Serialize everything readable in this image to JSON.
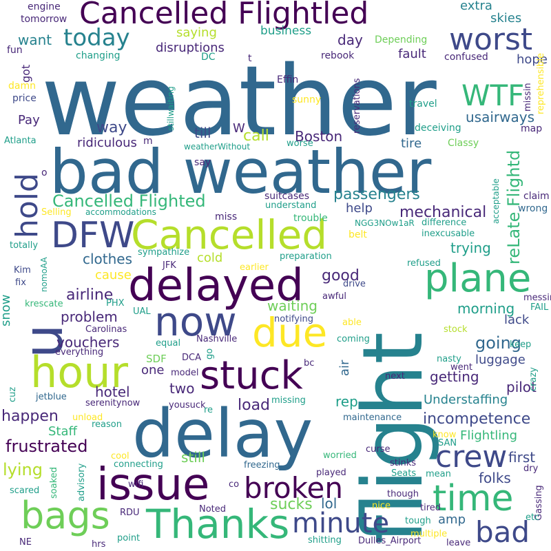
{
  "palette": {
    "c1": "#440154",
    "c2": "#482878",
    "c3": "#3e4989",
    "c4": "#31688e",
    "c5": "#26828e",
    "c6": "#1f9e89",
    "c7": "#35b779",
    "c8": "#6ece58",
    "c9": "#b5de2b",
    "c10": "#fde725"
  },
  "words": [
    {
      "text": "weather",
      "color": "c4"
    },
    {
      "text": "bad weather",
      "color": "c4"
    },
    {
      "text": "flight",
      "color": "c5"
    },
    {
      "text": "delay",
      "color": "c4"
    },
    {
      "text": "Cancelled Flightled",
      "color": "c1"
    },
    {
      "text": "delayed",
      "color": "c1"
    },
    {
      "text": "hour",
      "color": "c9"
    },
    {
      "text": "issue",
      "color": "c1"
    },
    {
      "text": "Cancelled",
      "color": "c9"
    },
    {
      "text": "u",
      "color": "c3"
    },
    {
      "text": "due",
      "color": "c10"
    },
    {
      "text": "stuck",
      "color": "c1"
    },
    {
      "text": "Thanks",
      "color": "c7"
    },
    {
      "text": "now",
      "color": "c3"
    },
    {
      "text": "plane",
      "color": "c7"
    },
    {
      "text": "bags",
      "color": "c8"
    },
    {
      "text": "time",
      "color": "c7"
    },
    {
      "text": "DFW",
      "color": "c3"
    },
    {
      "text": "broken",
      "color": "c1"
    },
    {
      "text": "crew",
      "color": "c3"
    },
    {
      "text": "hold",
      "color": "c3"
    },
    {
      "text": "minute",
      "color": "c3"
    },
    {
      "text": "bad",
      "color": "c3"
    },
    {
      "text": "worst",
      "color": "c3"
    },
    {
      "text": "today",
      "color": "c5"
    },
    {
      "text": "WTF",
      "color": "c7"
    },
    {
      "text": "Cancelled Flighted",
      "color": "c7"
    },
    {
      "text": "reLate Flightd",
      "color": "c7"
    },
    {
      "text": "incompetence",
      "color": "c3"
    },
    {
      "text": "frustrated",
      "color": "c1"
    },
    {
      "text": "passengers",
      "color": "c5"
    },
    {
      "text": "mechanical",
      "color": "c2"
    },
    {
      "text": "Flightling",
      "color": "c7"
    },
    {
      "text": "Understaffing",
      "color": "c5"
    },
    {
      "text": "sucks",
      "color": "c8"
    },
    {
      "text": "happen",
      "color": "c2"
    },
    {
      "text": "lying",
      "color": "c9"
    },
    {
      "text": "going",
      "color": "c4"
    },
    {
      "text": "problem",
      "color": "c2"
    },
    {
      "text": "airline",
      "color": "c2"
    },
    {
      "text": "good",
      "color": "c2"
    },
    {
      "text": "clothes",
      "color": "c4"
    },
    {
      "text": "waiting",
      "color": "c8"
    },
    {
      "text": "usairways",
      "color": "c4"
    },
    {
      "text": "load",
      "color": "c2"
    },
    {
      "text": "folks",
      "color": "c3"
    },
    {
      "text": "two",
      "color": "c2"
    },
    {
      "text": "hotel",
      "color": "c2"
    },
    {
      "text": "way",
      "color": "c3"
    },
    {
      "text": "call",
      "color": "c9"
    },
    {
      "text": "Boston",
      "color": "c2"
    },
    {
      "text": "ridiculous",
      "color": "c2"
    },
    {
      "text": "till",
      "color": "c3"
    },
    {
      "text": "W",
      "color": "c2"
    },
    {
      "text": "vouchers",
      "color": "c2"
    },
    {
      "text": "cause",
      "color": "c10"
    },
    {
      "text": "cold",
      "color": "c9"
    },
    {
      "text": "trying",
      "color": "c6"
    },
    {
      "text": "morning",
      "color": "c6"
    },
    {
      "text": "lack",
      "color": "c3"
    },
    {
      "text": "pilot",
      "color": "c2"
    },
    {
      "text": "getting",
      "color": "c2"
    },
    {
      "text": "luggage",
      "color": "c3"
    },
    {
      "text": "still",
      "color": "c8"
    },
    {
      "text": "rep",
      "color": "c6"
    },
    {
      "text": "lol",
      "color": "c4"
    },
    {
      "text": "amp",
      "color": "c4"
    },
    {
      "text": "first",
      "color": "c3"
    },
    {
      "text": "hope",
      "color": "c3"
    },
    {
      "text": "want",
      "color": "c5"
    },
    {
      "text": "day",
      "color": "c2"
    },
    {
      "text": "fault",
      "color": "c2"
    },
    {
      "text": "skies",
      "color": "c5"
    },
    {
      "text": "extra",
      "color": "c5"
    },
    {
      "text": "disruptions",
      "color": "c2"
    },
    {
      "text": "saying",
      "color": "c9"
    },
    {
      "text": "business",
      "color": "c6"
    },
    {
      "text": "help",
      "color": "c3"
    },
    {
      "text": "tire",
      "color": "c4"
    },
    {
      "text": "snow",
      "color": "c6"
    },
    {
      "text": "one",
      "color": "c2"
    },
    {
      "text": "SDF",
      "color": "c8"
    },
    {
      "text": "Staff",
      "color": "c7"
    },
    {
      "text": "Pay",
      "color": "c2"
    },
    {
      "text": "got",
      "color": "c2"
    },
    {
      "text": "air",
      "color": "c4"
    },
    {
      "text": "engine",
      "color": "c2"
    },
    {
      "text": "tomorrow",
      "color": "c2"
    },
    {
      "text": "fun",
      "color": "c2"
    },
    {
      "text": "changing",
      "color": "c6"
    },
    {
      "text": "DC",
      "color": "c6"
    },
    {
      "text": "t",
      "color": "c2"
    },
    {
      "text": "rebook",
      "color": "c2"
    },
    {
      "text": "Depending",
      "color": "c8"
    },
    {
      "text": "confused",
      "color": "c2"
    },
    {
      "text": "reprehensible",
      "color": "c10"
    },
    {
      "text": "missin",
      "color": "c2"
    },
    {
      "text": "map",
      "color": "c2"
    },
    {
      "text": "damn",
      "color": "c10"
    },
    {
      "text": "price",
      "color": "c3"
    },
    {
      "text": "Effin",
      "color": "c2"
    },
    {
      "text": "sunny",
      "color": "c10"
    },
    {
      "text": "travel",
      "color": "c6"
    },
    {
      "text": "reservations",
      "color": "c2"
    },
    {
      "text": "stillwaiting",
      "color": "c6"
    },
    {
      "text": "deceiving",
      "color": "c6"
    },
    {
      "text": "Atlanta",
      "color": "c6"
    },
    {
      "text": "m",
      "color": "c2"
    },
    {
      "text": "weatherWithout",
      "color": "c6"
    },
    {
      "text": "worse",
      "color": "c6"
    },
    {
      "text": "Classy",
      "color": "c8"
    },
    {
      "text": "say",
      "color": "c2"
    },
    {
      "text": "o",
      "color": "c2"
    },
    {
      "text": "acceptable",
      "color": "c6"
    },
    {
      "text": "claim",
      "color": "c2"
    },
    {
      "text": "suitcases",
      "color": "c2"
    },
    {
      "text": "understand",
      "color": "c6"
    },
    {
      "text": "Selling",
      "color": "c10"
    },
    {
      "text": "accommodations",
      "color": "c6"
    },
    {
      "text": "miss",
      "color": "c2"
    },
    {
      "text": "trouble",
      "color": "c7"
    },
    {
      "text": "NGG3NOw1aR",
      "color": "c6"
    },
    {
      "text": "difference",
      "color": "c6"
    },
    {
      "text": "belt",
      "color": "c10"
    },
    {
      "text": "wrong",
      "color": "c4"
    },
    {
      "text": "inexcusable",
      "color": "c6"
    },
    {
      "text": "totally",
      "color": "c6"
    },
    {
      "text": "sympathize",
      "color": "c6"
    },
    {
      "text": "preparation",
      "color": "c6"
    },
    {
      "text": "earlier",
      "color": "c10"
    },
    {
      "text": "Kim",
      "color": "c3"
    },
    {
      "text": "JFK",
      "color": "c2"
    },
    {
      "text": "refused",
      "color": "c6"
    },
    {
      "text": "nomoAA",
      "color": "c6"
    },
    {
      "text": "fix",
      "color": "c3"
    },
    {
      "text": "drive",
      "color": "c3"
    },
    {
      "text": "awful",
      "color": "c2"
    },
    {
      "text": "messing",
      "color": "c2"
    },
    {
      "text": "FAIL",
      "color": "c6"
    },
    {
      "text": "krescate",
      "color": "c7"
    },
    {
      "text": "PHX",
      "color": "c6"
    },
    {
      "text": "UAL",
      "color": "c6"
    },
    {
      "text": "notifying",
      "color": "c3"
    },
    {
      "text": "able",
      "color": "c10"
    },
    {
      "text": "Carolinas",
      "color": "c2"
    },
    {
      "text": "stock",
      "color": "c9"
    },
    {
      "text": "coming",
      "color": "c6"
    },
    {
      "text": "equal",
      "color": "c6"
    },
    {
      "text": "Nashville",
      "color": "c2"
    },
    {
      "text": "keep",
      "color": "c6"
    },
    {
      "text": "everything",
      "color": "c2"
    },
    {
      "text": "go",
      "color": "c6"
    },
    {
      "text": "DCA",
      "color": "c2"
    },
    {
      "text": "nasty",
      "color": "c6"
    },
    {
      "text": "bc",
      "color": "c2"
    },
    {
      "text": "went",
      "color": "c2"
    },
    {
      "text": "crazy",
      "color": "c6"
    },
    {
      "text": "model",
      "color": "c2"
    },
    {
      "text": "next",
      "color": "c2"
    },
    {
      "text": "jetblue",
      "color": "c4"
    },
    {
      "text": "serenitynow",
      "color": "c2"
    },
    {
      "text": "cuz",
      "color": "c6"
    },
    {
      "text": "yousuck",
      "color": "c2"
    },
    {
      "text": "missing",
      "color": "c6"
    },
    {
      "text": "re",
      "color": "c6"
    },
    {
      "text": "unload",
      "color": "c10"
    },
    {
      "text": "reason",
      "color": "c6"
    },
    {
      "text": "maintenance",
      "color": "c4"
    },
    {
      "text": "know",
      "color": "c10"
    },
    {
      "text": "SAN",
      "color": "c6"
    },
    {
      "text": "cool",
      "color": "c10"
    },
    {
      "text": "connecting",
      "color": "c6"
    },
    {
      "text": "advisory",
      "color": "c6"
    },
    {
      "text": "soaked",
      "color": "c7"
    },
    {
      "text": "worried",
      "color": "c7"
    },
    {
      "text": "curse",
      "color": "c2"
    },
    {
      "text": "stinks",
      "color": "c2"
    },
    {
      "text": "dry",
      "color": "c2"
    },
    {
      "text": "mean",
      "color": "c6"
    },
    {
      "text": "Seats",
      "color": "c6"
    },
    {
      "text": "played",
      "color": "c2"
    },
    {
      "text": "freezing",
      "color": "c4"
    },
    {
      "text": "scared",
      "color": "c6"
    },
    {
      "text": "co",
      "color": "c2"
    },
    {
      "text": "though",
      "color": "c2"
    },
    {
      "text": "wifi",
      "color": "c2"
    },
    {
      "text": "nice",
      "color": "c10"
    },
    {
      "text": "tired",
      "color": "c2"
    },
    {
      "text": "Gassing",
      "color": "c2"
    },
    {
      "text": "RDU",
      "color": "c2"
    },
    {
      "text": "Noted",
      "color": "c2"
    },
    {
      "text": "tough",
      "color": "c6"
    },
    {
      "text": "etc",
      "color": "c6"
    },
    {
      "text": "point",
      "color": "c6"
    },
    {
      "text": "multiple",
      "color": "c10"
    },
    {
      "text": "NE",
      "color": "c2"
    },
    {
      "text": "hrs",
      "color": "c2"
    },
    {
      "text": "shitting",
      "color": "c6"
    },
    {
      "text": "Dulles_Airport",
      "color": "c2"
    },
    {
      "text": "leave",
      "color": "c2"
    }
  ]
}
